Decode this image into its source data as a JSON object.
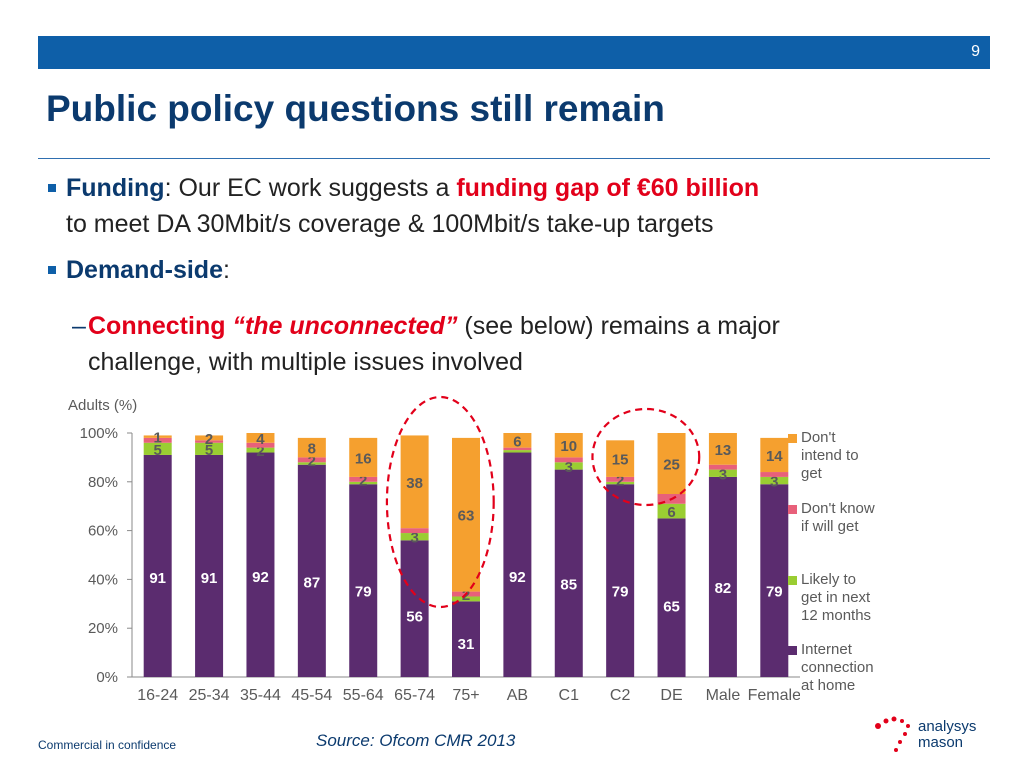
{
  "header": {
    "page_number": "9"
  },
  "slide": {
    "title": "Public policy questions still remain"
  },
  "bullets": {
    "b1": {
      "keyword": "Funding",
      "text_a": ": Our EC work suggests a ",
      "highlight": "funding gap of €60 billion",
      "line2": "to meet DA 30Mbit/s coverage & 100Mbit/s take-up targets"
    },
    "b2": {
      "keyword": "Demand-side",
      "text_a": ":"
    },
    "sub1": {
      "dash": "–",
      "kw1": "Connecting ",
      "kw2": "“the unconnected”",
      "text_a": " (see below) remains a major",
      "line2": "challenge, with multiple issues involved"
    }
  },
  "chart_data": {
    "type": "bar",
    "stacked": true,
    "ylabel": "Adults (%)",
    "ylim": [
      0,
      100
    ],
    "yticks": [
      "0%",
      "20%",
      "40%",
      "60%",
      "80%",
      "100%"
    ],
    "categories": [
      "16-24",
      "25-34",
      "35-44",
      "45-54",
      "55-64",
      "65-74",
      "75+",
      "AB",
      "C1",
      "C2",
      "DE",
      "Male",
      "Female"
    ],
    "series": [
      {
        "name": "Internet connection at home",
        "color": "#5b2c6f",
        "values": [
          91,
          91,
          92,
          87,
          79,
          56,
          31,
          92,
          85,
          79,
          65,
          82,
          79
        ],
        "labels": [
          "91",
          "91",
          "92",
          "87",
          "79",
          "56",
          "31",
          "92",
          "85",
          "79",
          "65",
          "82",
          "79"
        ]
      },
      {
        "name": "Likely to get in next 12 months",
        "color": "#9acd32",
        "values": [
          5,
          5,
          2,
          1,
          1,
          3,
          2,
          1,
          3,
          1,
          6,
          3,
          3
        ],
        "labels": [
          "5",
          "5",
          "2",
          "",
          "",
          "3",
          "",
          "",
          "3",
          "",
          "6",
          "3",
          "3"
        ]
      },
      {
        "name": "Don't know if will get",
        "color": "#e8607a",
        "values": [
          2,
          1,
          2,
          2,
          2,
          2,
          2,
          1,
          2,
          2,
          4,
          2,
          2
        ],
        "labels": [
          "",
          "",
          "",
          "2",
          "2",
          "",
          "2",
          "",
          "",
          "2",
          "",
          "",
          ""
        ]
      },
      {
        "name": "Don't intend to get",
        "color": "#f5a02f",
        "values": [
          1,
          2,
          4,
          8,
          16,
          38,
          63,
          6,
          10,
          15,
          25,
          13,
          14
        ],
        "labels": [
          "1",
          "2",
          "4",
          "8",
          "16",
          "38",
          "63",
          "6",
          "10",
          "15",
          "25",
          "13",
          "14"
        ]
      }
    ],
    "legend": [
      {
        "text": "Don't\nintend to\nget",
        "color": "#f5a02f"
      },
      {
        "text": "Don't know\nif will get",
        "color": "#e8607a"
      },
      {
        "text": "Likely to\nget in next\n12 months",
        "color": "#9acd32"
      },
      {
        "text": "Internet\nconnection\nat home",
        "color": "#5b2c6f"
      }
    ],
    "highlight_circles": [
      "65-74 and 75+",
      "C2 and DE"
    ],
    "grid": false,
    "legend_position": "right"
  },
  "footer": {
    "source": "Source: Ofcom CMR 2013",
    "confidential": "Commercial in confidence",
    "logo_line1": "analysys",
    "logo_line2": "mason"
  },
  "colors": {
    "brand_blue": "#0e5fa8",
    "title_navy": "#0b3a6e",
    "accent_red": "#e2001a"
  }
}
